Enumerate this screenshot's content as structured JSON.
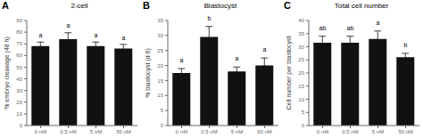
{
  "chart_data": [
    {
      "type": "bar",
      "panel_label": "A",
      "title": "2-cell",
      "ylabel": "% embryo cleavage (48 h)",
      "categories": [
        "0 nM",
        "0.5 nM",
        "5 nM",
        "50 nM"
      ],
      "values": [
        68,
        74,
        68,
        66
      ],
      "errors": [
        3.5,
        5.5,
        3.5,
        3.5
      ],
      "color": "#111111",
      "ylim": [
        0,
        90
      ],
      "yticks": [
        0,
        10,
        20,
        30,
        40,
        50,
        60,
        70,
        80,
        90
      ],
      "grid": false,
      "annotations": [
        {
          "text": "a",
          "x": "0 nM",
          "y": 74
        },
        {
          "text": "a",
          "x": "0.5 nM",
          "y": 82
        },
        {
          "text": "a",
          "x": "5 nM",
          "y": 74
        },
        {
          "text": "a",
          "x": "50 nM",
          "y": 72
        }
      ]
    },
    {
      "type": "bar",
      "panel_label": "B",
      "title": "Blastocyst",
      "ylabel": "% blastocyst (d 6)",
      "categories": [
        "0 nM",
        "0.5 nM",
        "5 nM",
        "50 nM"
      ],
      "values": [
        17.5,
        29.5,
        18,
        20
      ],
      "errors": [
        1.5,
        3.5,
        1.5,
        2.5
      ],
      "color": "#111111",
      "ylim": [
        0,
        35
      ],
      "yticks": [
        0,
        5,
        10,
        15,
        20,
        25,
        30,
        35
      ],
      "grid": false,
      "annotations": [
        {
          "text": "a",
          "x": "0 nM",
          "y": 20.5
        },
        {
          "text": "b",
          "x": "0.5 nM",
          "y": 34.5
        },
        {
          "text": "a",
          "x": "5 nM",
          "y": 21
        },
        {
          "text": "a",
          "x": "50 nM",
          "y": 24
        }
      ]
    },
    {
      "type": "bar",
      "panel_label": "C",
      "title": "Total cell number",
      "ylabel": "Cell number per blastocyst",
      "categories": [
        "0 nM",
        "0.5 nM",
        "5 nM",
        "50 nM"
      ],
      "values": [
        31.5,
        31.5,
        33,
        26
      ],
      "errors": [
        2.5,
        2.5,
        3.0,
        1.5
      ],
      "color": "#111111",
      "ylim": [
        0,
        40
      ],
      "yticks": [
        0,
        5,
        10,
        15,
        20,
        25,
        30,
        35,
        40
      ],
      "grid": false,
      "annotations": [
        {
          "text": "ab",
          "x": "0 nM",
          "y": 35.5
        },
        {
          "text": "ab",
          "x": "0.5 nM",
          "y": 35.5
        },
        {
          "text": "a",
          "x": "5 nM",
          "y": 37.5
        },
        {
          "text": "b",
          "x": "50 nM",
          "y": 29
        }
      ]
    }
  ]
}
